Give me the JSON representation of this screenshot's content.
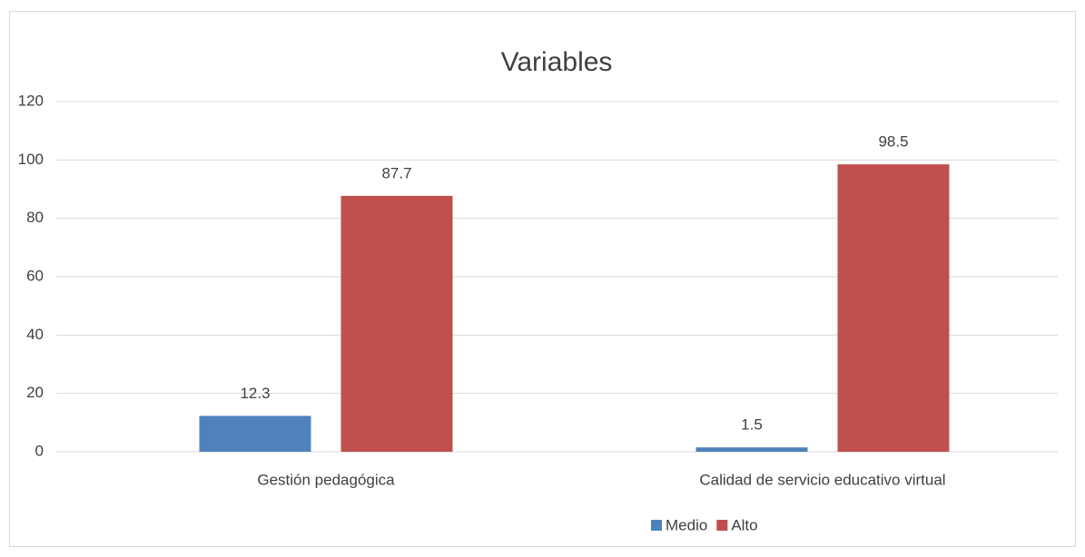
{
  "chart_data": {
    "type": "bar",
    "title": "Variables",
    "categories": [
      "Gestión pedagógica",
      "Calidad de servicio educativo virtual"
    ],
    "series": [
      {
        "name": "Medio",
        "color": "#4f81bd",
        "values": [
          12.3,
          1.5
        ]
      },
      {
        "name": "Alto",
        "color": "#c0504d",
        "values": [
          87.7,
          98.5
        ]
      }
    ],
    "ylim": [
      0,
      120
    ],
    "yticks": [
      0,
      20,
      40,
      60,
      80,
      100,
      120
    ],
    "grid": true,
    "legend": "bottom"
  }
}
